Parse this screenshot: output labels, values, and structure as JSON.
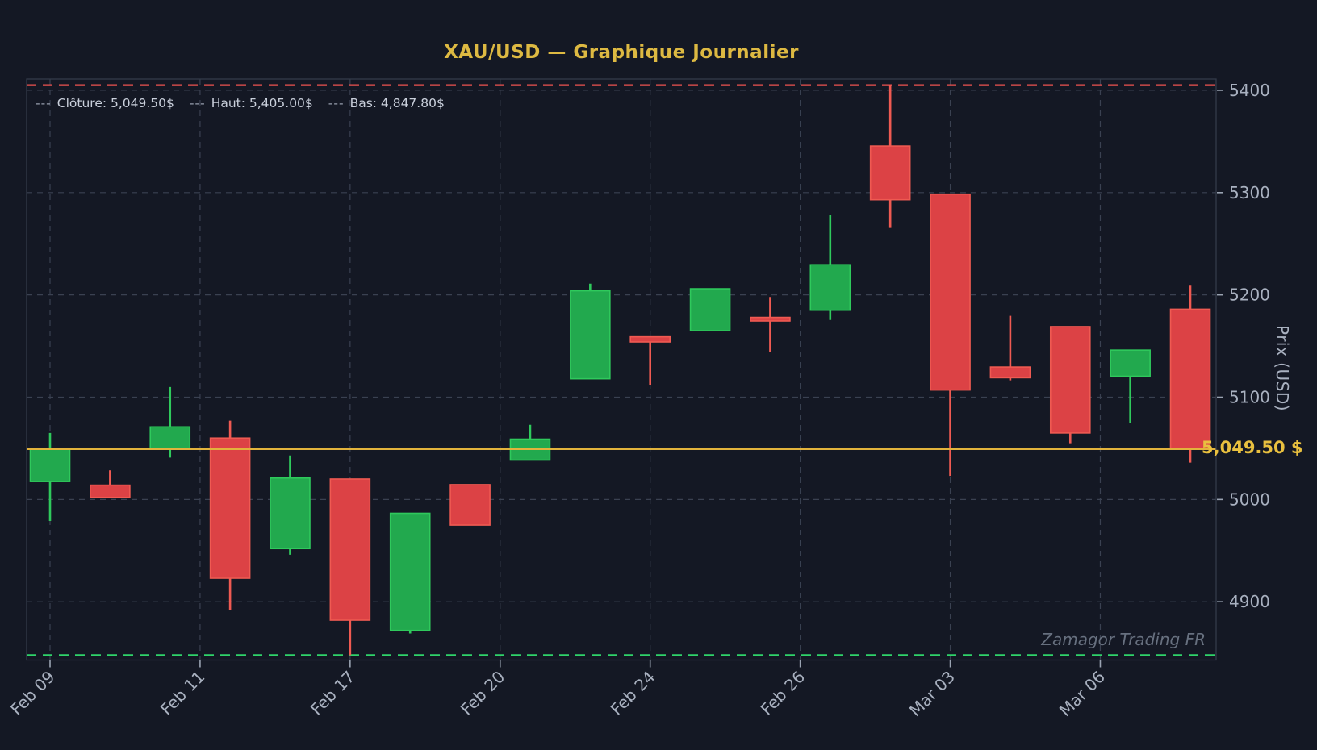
{
  "figure": {
    "title": "XAU/USD — Graphique Journalier",
    "ylabel": "Prix (USD)",
    "price_tag": "5,049.50 $",
    "watermark": "Zamagor Trading FR"
  },
  "legend": {
    "items": [
      {
        "dash": "---",
        "label": "Clôture: 5,049.50$"
      },
      {
        "dash": "---",
        "label": "Haut: 5,405.00$"
      },
      {
        "dash": "---",
        "label": "Bas: 4,847.80$"
      }
    ]
  },
  "colors": {
    "background": "#141824",
    "grid": "#3a4151",
    "spine": "#333b49",
    "tick": "#9aa3b2",
    "tick_label": "#a9b1c0",
    "up_fill": "#22a94e",
    "up_edge": "#2fc95c",
    "down_fill": "#dc4245",
    "down_edge": "#ef5a52",
    "cloture_line": "#e2b33c",
    "haut_line": "#ef5350",
    "bas_line": "#2fd36a"
  },
  "chart_data": {
    "type": "candlestick",
    "title": "XAU/USD — Graphique Journalier",
    "xlabel": "",
    "ylabel": "Prix (USD)",
    "grid": true,
    "legend_position": "top-left",
    "ylim": [
      4843,
      5411
    ],
    "xlim": [
      -0.39,
      19.43
    ],
    "y_ticks": [
      5400,
      5300,
      5200,
      5100,
      5000,
      4900
    ],
    "x_tick_indices": [
      0,
      2.5,
      5,
      7.5,
      10,
      12.5,
      15,
      17.5
    ],
    "x_tick_labels": [
      "Feb 09",
      "Feb 11",
      "Feb 17",
      "Feb 20",
      "Feb 24",
      "Feb 26",
      "Mar 03",
      "Mar 06"
    ],
    "hlines": [
      {
        "name": "haut",
        "value": 5405.0,
        "style": "dashed",
        "color_key": "haut_line"
      },
      {
        "name": "cloture",
        "value": 5049.5,
        "style": "solid",
        "color_key": "cloture_line"
      },
      {
        "name": "bas",
        "value": 4847.8,
        "style": "dashed",
        "color_key": "bas_line"
      }
    ],
    "candles": [
      {
        "open": 5017.5,
        "high": 5065.0,
        "low": 4979.0,
        "close": 5050.0
      },
      {
        "open": 5014.0,
        "high": 5028.5,
        "low": 5002.0,
        "close": 5002.0
      },
      {
        "open": 5050.0,
        "high": 5110.0,
        "low": 5041.0,
        "close": 5071.0
      },
      {
        "open": 5060.0,
        "high": 5077.0,
        "low": 4892.0,
        "close": 4923.0
      },
      {
        "open": 4952.0,
        "high": 5043.0,
        "low": 4946.0,
        "close": 5021.0
      },
      {
        "open": 5020.0,
        "high": 5020.0,
        "low": 4847.8,
        "close": 4882.0
      },
      {
        "open": 4872.0,
        "high": 4986.5,
        "low": 4869.0,
        "close": 4986.5
      },
      {
        "open": 5014.5,
        "high": 5014.5,
        "low": 4975.0,
        "close": 4975.0
      },
      {
        "open": 5038.5,
        "high": 5073.0,
        "low": 5038.5,
        "close": 5059.0
      },
      {
        "open": 5118.0,
        "high": 5211.0,
        "low": 5118.0,
        "close": 5204.0
      },
      {
        "open": 5159.0,
        "high": 5159.0,
        "low": 5112.0,
        "close": 5154.0
      },
      {
        "open": 5165.0,
        "high": 5206.0,
        "low": 5165.0,
        "close": 5206.0
      },
      {
        "open": 5178.0,
        "high": 5198.0,
        "low": 5144.0,
        "close": 5174.5
      },
      {
        "open": 5185.0,
        "high": 5278.5,
        "low": 5175.5,
        "close": 5229.5
      },
      {
        "open": 5345.5,
        "high": 5405.0,
        "low": 5265.5,
        "close": 5293.0
      },
      {
        "open": 5298.5,
        "high": 5298.5,
        "low": 5023.0,
        "close": 5107.0
      },
      {
        "open": 5129.5,
        "high": 5179.5,
        "low": 5116.5,
        "close": 5119.0
      },
      {
        "open": 5169.0,
        "high": 5169.0,
        "low": 5055.0,
        "close": 5065.0
      },
      {
        "open": 5120.5,
        "high": 5146.0,
        "low": 5075.0,
        "close": 5146.0
      },
      {
        "open": 5186.0,
        "high": 5209.0,
        "low": 5036.0,
        "close": 5049.5
      }
    ]
  }
}
